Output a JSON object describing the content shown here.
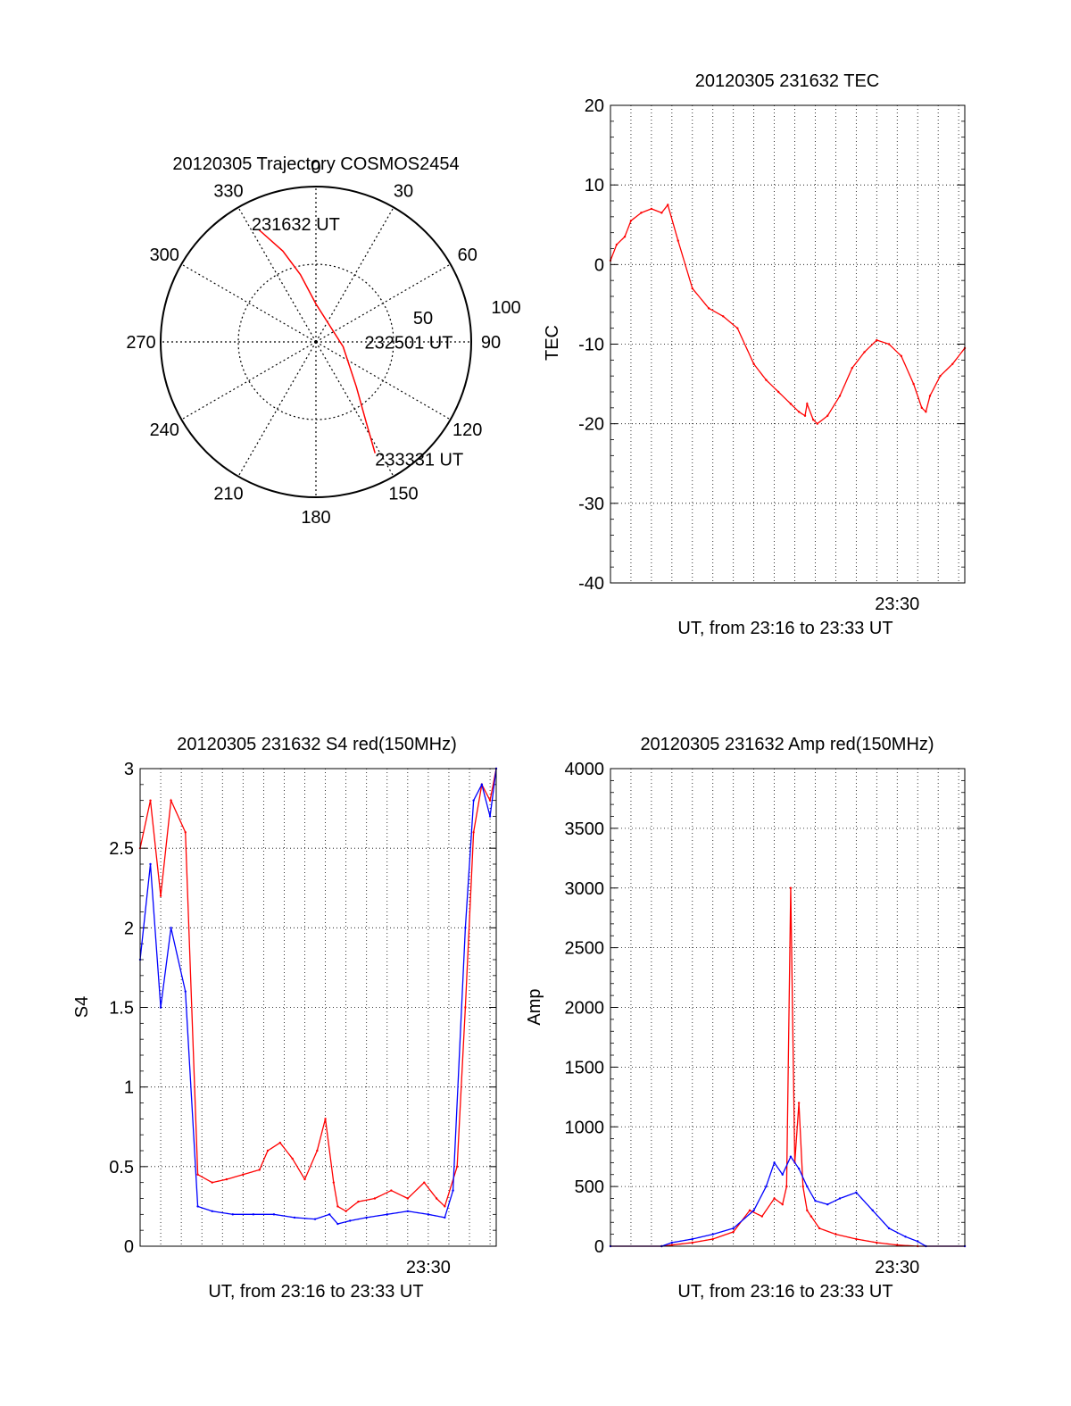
{
  "chart_data": [
    {
      "type": "polar",
      "title": "20120305 Trajectory COSMOS2454",
      "angle_labels": [
        "0",
        "30",
        "60",
        "90",
        "120",
        "150",
        "180",
        "210",
        "240",
        "270",
        "300",
        "330"
      ],
      "radial_labels": [
        "50",
        "100"
      ],
      "series": [
        {
          "name": "trajectory",
          "color": "#ff0000",
          "points": [
            {
              "az": 333,
              "elev": 17
            },
            {
              "az": 340,
              "elev": 34
            },
            {
              "az": 347,
              "elev": 50
            },
            {
              "az": 360,
              "elev": 68
            },
            {
              "az": 100,
              "elev": 74
            },
            {
              "az": 138,
              "elev": 55
            },
            {
              "az": 148,
              "elev": 35
            },
            {
              "az": 152,
              "elev": 17
            }
          ]
        }
      ],
      "annotations": [
        {
          "text": "231632 UT",
          "az": 333,
          "elev": 17
        },
        {
          "text": "232501 UT",
          "az": 100,
          "elev": 74
        },
        {
          "text": "233331 UT",
          "az": 152,
          "elev": 17
        }
      ]
    },
    {
      "type": "line",
      "title": "20120305 231632 TEC",
      "xlabel": "UT, from 23:16 to 23:33 UT",
      "ylabel": "TEC",
      "xtick_label": "23:30",
      "yticks": [
        "20",
        "10",
        "0",
        "-10",
        "-20",
        "-30",
        "-40"
      ],
      "ylim": [
        -40,
        20
      ],
      "xlim_min": [
        0,
        17.3
      ],
      "series": [
        {
          "name": "TEC",
          "color": "#ff0000",
          "x": [
            0.0,
            0.3,
            0.7,
            1.0,
            1.5,
            2.0,
            2.5,
            2.8,
            3.3,
            4.0,
            4.8,
            5.5,
            6.2,
            7.0,
            7.6,
            8.2,
            8.8,
            9.2,
            9.5,
            9.6,
            9.9,
            10.1,
            10.6,
            11.2,
            11.8,
            12.4,
            13.0,
            13.6,
            14.2,
            14.8,
            15.2,
            15.4,
            15.6,
            16.1,
            16.7,
            17.3
          ],
          "y": [
            0.5,
            2.5,
            3.5,
            5.5,
            6.5,
            7.0,
            6.5,
            7.5,
            3.0,
            -3.0,
            -5.5,
            -6.5,
            -8.0,
            -12.5,
            -14.5,
            -16.0,
            -17.5,
            -18.5,
            -19.0,
            -17.5,
            -19.5,
            -20.0,
            -19.0,
            -16.5,
            -13.0,
            -11.0,
            -9.5,
            -10.0,
            -11.5,
            -15.0,
            -18.0,
            -18.5,
            -16.5,
            -14.0,
            -12.5,
            -10.5
          ]
        }
      ]
    },
    {
      "type": "line",
      "title": "20120305 231632 S4 red(150MHz)",
      "xlabel": "UT, from 23:16 to 23:33 UT",
      "ylabel": "S4",
      "xtick_label": "23:30",
      "yticks": [
        "3",
        "2.5",
        "2",
        "1.5",
        "1",
        "0.5",
        "0"
      ],
      "ylim": [
        0,
        3
      ],
      "xlim_min": [
        0,
        17.3
      ],
      "series": [
        {
          "name": "red",
          "color": "#ff0000",
          "x": [
            0.0,
            0.5,
            1.0,
            1.5,
            2.2,
            2.8,
            3.5,
            4.2,
            5.0,
            5.8,
            6.2,
            6.8,
            7.4,
            8.0,
            8.6,
            9.0,
            9.4,
            9.6,
            10.0,
            10.6,
            11.4,
            12.2,
            13.0,
            13.8,
            14.4,
            14.8,
            15.4,
            15.8,
            16.2,
            16.6,
            17.0,
            17.3
          ],
          "y": [
            2.5,
            2.8,
            2.2,
            2.8,
            2.6,
            0.45,
            0.4,
            0.42,
            0.45,
            0.48,
            0.6,
            0.65,
            0.55,
            0.42,
            0.6,
            0.8,
            0.4,
            0.25,
            0.22,
            0.28,
            0.3,
            0.35,
            0.3,
            0.4,
            0.3,
            0.25,
            0.5,
            1.5,
            2.6,
            2.9,
            2.8,
            3.0
          ]
        },
        {
          "name": "blue",
          "color": "#0000ff",
          "x": [
            0.0,
            0.5,
            1.0,
            1.5,
            2.2,
            2.8,
            3.5,
            4.5,
            5.5,
            6.5,
            7.5,
            8.5,
            9.2,
            9.6,
            10.2,
            11.0,
            12.0,
            13.0,
            14.0,
            14.8,
            15.2,
            15.8,
            16.2,
            16.6,
            17.0,
            17.3
          ],
          "y": [
            1.8,
            2.4,
            1.5,
            2.0,
            1.6,
            0.25,
            0.22,
            0.2,
            0.2,
            0.2,
            0.18,
            0.17,
            0.2,
            0.14,
            0.16,
            0.18,
            0.2,
            0.22,
            0.2,
            0.18,
            0.35,
            2.0,
            2.8,
            2.9,
            2.7,
            3.0
          ]
        }
      ]
    },
    {
      "type": "line",
      "title": "20120305 231632 Amp red(150MHz)",
      "xlabel": "UT, from 23:16 to 23:33 UT",
      "ylabel": "Amp",
      "xtick_label": "23:30",
      "yticks": [
        "4000",
        "3500",
        "3000",
        "2500",
        "2000",
        "1500",
        "1000",
        "500",
        "0"
      ],
      "ylim": [
        0,
        4000
      ],
      "xlim_min": [
        0,
        17.3
      ],
      "series": [
        {
          "name": "red",
          "color": "#ff0000",
          "x": [
            0.0,
            2.5,
            3.0,
            4.0,
            5.0,
            6.0,
            6.8,
            7.4,
            8.0,
            8.4,
            8.6,
            8.8,
            9.0,
            9.2,
            9.4,
            9.6,
            9.8,
            10.2,
            11.0,
            12.0,
            13.0,
            14.0,
            15.0,
            17.3
          ],
          "y": [
            0,
            0,
            10,
            30,
            60,
            120,
            300,
            250,
            400,
            350,
            500,
            3000,
            700,
            1200,
            500,
            300,
            250,
            150,
            100,
            60,
            30,
            10,
            0,
            0
          ]
        },
        {
          "name": "blue",
          "color": "#0000ff",
          "x": [
            0.0,
            2.5,
            3.0,
            4.0,
            5.0,
            6.0,
            7.0,
            7.6,
            8.0,
            8.4,
            8.8,
            9.2,
            9.6,
            10.0,
            10.6,
            11.2,
            12.0,
            12.8,
            13.6,
            14.4,
            15.0,
            15.4,
            17.3
          ],
          "y": [
            0,
            0,
            30,
            60,
            100,
            150,
            300,
            500,
            700,
            600,
            750,
            650,
            500,
            380,
            350,
            400,
            450,
            300,
            150,
            80,
            40,
            0,
            0
          ]
        }
      ]
    }
  ]
}
